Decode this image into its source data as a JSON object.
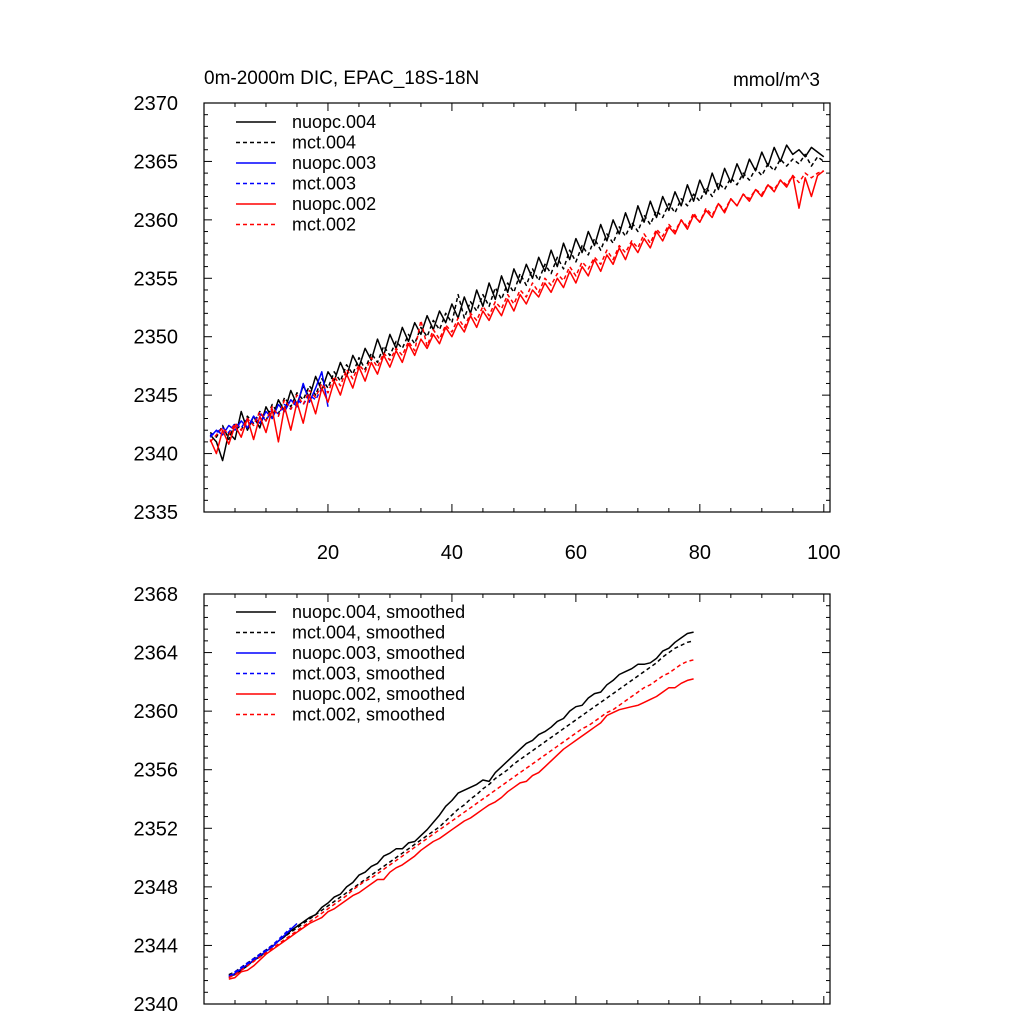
{
  "colors": {
    "black": "#000000",
    "blue": "#0000ff",
    "red": "#ff0000"
  },
  "chart_data": [
    {
      "type": "line",
      "title": "0m-2000m DIC, EPAC_18S-18N",
      "units": "mmol/m^3",
      "xlabel": "",
      "ylabel": "",
      "xlim": [
        0,
        101
      ],
      "ylim": [
        2335,
        2370
      ],
      "xticks": [
        20,
        40,
        60,
        80,
        100
      ],
      "xtick_labels": [
        "20",
        "40",
        "60",
        "80",
        "100"
      ],
      "yticks": [
        2335,
        2340,
        2345,
        2350,
        2355,
        2360,
        2365,
        2370
      ],
      "ytick_labels": [
        "2335",
        "2340",
        "2345",
        "2350",
        "2355",
        "2360",
        "2365",
        "2370"
      ],
      "legend_position": "top-left",
      "series": [
        {
          "name": "nuopc.004",
          "color": "black",
          "dash": false,
          "start": 1,
          "values": [
            2341.6,
            2341.0,
            2339.4,
            2341.8,
            2341.2,
            2343.6,
            2342.0,
            2343.2,
            2342.2,
            2344.0,
            2343.0,
            2344.6,
            2343.6,
            2345.4,
            2344.2,
            2345.8,
            2344.8,
            2346.6,
            2345.4,
            2347.0,
            2346.2,
            2347.8,
            2346.6,
            2348.4,
            2347.4,
            2349.0,
            2348.0,
            2349.8,
            2348.4,
            2350.2,
            2349.0,
            2350.8,
            2349.6,
            2351.2,
            2350.2,
            2351.8,
            2350.6,
            2352.2,
            2351.2,
            2352.8,
            2351.6,
            2353.4,
            2352.0,
            2354.0,
            2352.6,
            2354.6,
            2353.2,
            2355.2,
            2353.8,
            2355.8,
            2354.6,
            2356.2,
            2355.0,
            2356.8,
            2355.6,
            2357.4,
            2356.0,
            2358.0,
            2356.6,
            2358.4,
            2357.2,
            2359.0,
            2357.8,
            2359.6,
            2358.2,
            2360.0,
            2358.8,
            2360.6,
            2359.2,
            2361.2,
            2359.8,
            2361.6,
            2360.2,
            2362.0,
            2360.8,
            2362.4,
            2361.2,
            2363.0,
            2361.6,
            2363.4,
            2362.2,
            2364.0,
            2362.6,
            2364.4,
            2363.2,
            2364.8,
            2363.6,
            2365.2,
            2364.2,
            2365.8,
            2364.6,
            2366.2,
            2365.0,
            2366.4,
            2365.6,
            2366.0,
            2365.4,
            2366.2,
            2365.8,
            2365.4
          ]
        },
        {
          "name": "mct.004",
          "color": "black",
          "dash": true,
          "start": 1,
          "values": [
            2341.8,
            2341.4,
            2342.4,
            2341.2,
            2342.6,
            2342.0,
            2343.2,
            2342.6,
            2343.6,
            2342.8,
            2344.2,
            2343.4,
            2344.8,
            2344.0,
            2345.2,
            2344.6,
            2345.8,
            2345.0,
            2346.4,
            2345.6,
            2347.0,
            2346.2,
            2347.6,
            2346.8,
            2348.2,
            2347.2,
            2348.6,
            2347.8,
            2349.2,
            2348.4,
            2349.6,
            2349.0,
            2350.2,
            2349.4,
            2350.8,
            2350.0,
            2351.4,
            2350.6,
            2352.0,
            2351.2,
            2353.6,
            2351.6,
            2353.0,
            2352.2,
            2353.6,
            2352.6,
            2354.2,
            2353.2,
            2354.6,
            2353.8,
            2355.4,
            2354.4,
            2355.8,
            2354.8,
            2356.2,
            2355.4,
            2356.8,
            2355.8,
            2357.4,
            2356.4,
            2357.8,
            2357.0,
            2358.4,
            2357.4,
            2358.8,
            2358.0,
            2359.4,
            2358.6,
            2359.8,
            2359.0,
            2360.4,
            2359.6,
            2360.8,
            2360.2,
            2361.4,
            2360.6,
            2361.8,
            2361.2,
            2362.2,
            2361.6,
            2362.8,
            2362.0,
            2363.2,
            2362.6,
            2363.6,
            2363.0,
            2364.0,
            2363.4,
            2364.4,
            2363.8,
            2364.8,
            2364.2,
            2365.2,
            2364.6,
            2365.2,
            2364.8,
            2365.6,
            2364.6,
            2365.4,
            2365.0
          ]
        },
        {
          "name": "nuopc.003",
          "color": "blue",
          "dash": false,
          "start": 1,
          "values": [
            2341.4,
            2342.0,
            2341.6,
            2342.4,
            2342.0,
            2342.8,
            2342.2,
            2343.2,
            2342.6,
            2343.6,
            2343.0,
            2344.2,
            2343.6,
            2344.6,
            2344.0,
            2346.0,
            2344.4,
            2345.6,
            2347.0,
            2344.0
          ]
        },
        {
          "name": "mct.003",
          "color": "blue",
          "dash": true,
          "start": 1,
          "values": [
            2341.6,
            2341.8,
            2342.2,
            2341.8,
            2342.6,
            2342.2,
            2343.0,
            2342.6,
            2343.4,
            2342.8,
            2343.8,
            2343.4,
            2344.2,
            2343.8,
            2344.6,
            2344.2,
            2345.0,
            2344.6,
            2345.6
          ]
        },
        {
          "name": "nuopc.002",
          "color": "red",
          "dash": false,
          "start": 1,
          "values": [
            2341.2,
            2340.0,
            2342.0,
            2340.8,
            2342.4,
            2341.4,
            2343.0,
            2341.2,
            2343.2,
            2341.8,
            2343.8,
            2341.0,
            2344.0,
            2342.0,
            2344.4,
            2342.6,
            2345.0,
            2343.4,
            2345.6,
            2344.4,
            2346.2,
            2345.0,
            2346.8,
            2345.6,
            2347.4,
            2346.2,
            2347.8,
            2346.8,
            2348.4,
            2347.4,
            2348.8,
            2347.8,
            2349.4,
            2348.4,
            2349.8,
            2349.0,
            2350.2,
            2349.4,
            2350.8,
            2350.0,
            2351.2,
            2350.4,
            2351.8,
            2350.8,
            2352.2,
            2351.4,
            2352.6,
            2351.8,
            2353.2,
            2352.2,
            2353.6,
            2352.8,
            2354.0,
            2353.4,
            2354.6,
            2353.8,
            2355.0,
            2354.2,
            2355.6,
            2354.6,
            2356.0,
            2355.2,
            2356.6,
            2355.6,
            2357.0,
            2356.2,
            2357.6,
            2356.6,
            2358.0,
            2357.2,
            2358.4,
            2357.6,
            2359.0,
            2358.2,
            2359.4,
            2358.8,
            2360.0,
            2359.2,
            2360.4,
            2359.8,
            2360.8,
            2360.2,
            2361.4,
            2360.6,
            2361.8,
            2361.2,
            2362.2,
            2361.6,
            2362.6,
            2362.0,
            2363.0,
            2362.4,
            2363.4,
            2362.8,
            2363.8,
            2361.0,
            2363.6,
            2362.0,
            2363.8,
            2364.2
          ]
        },
        {
          "name": "mct.002",
          "color": "red",
          "dash": true,
          "start": 1,
          "values": [
            2341.0,
            2341.6,
            2342.2,
            2341.6,
            2342.6,
            2342.0,
            2343.0,
            2342.4,
            2343.6,
            2342.8,
            2344.0,
            2343.2,
            2344.6,
            2343.8,
            2345.0,
            2344.2,
            2345.4,
            2344.8,
            2346.0,
            2345.2,
            2346.6,
            2345.8,
            2347.2,
            2346.4,
            2347.6,
            2347.0,
            2348.2,
            2347.4,
            2348.6,
            2348.0,
            2349.0,
            2348.4,
            2349.6,
            2348.8,
            2351.4,
            2349.2,
            2350.6,
            2349.8,
            2351.0,
            2350.4,
            2351.6,
            2350.8,
            2352.0,
            2351.4,
            2352.6,
            2351.8,
            2353.0,
            2352.4,
            2353.6,
            2352.8,
            2354.0,
            2353.4,
            2354.6,
            2353.8,
            2355.0,
            2354.4,
            2355.4,
            2354.8,
            2356.0,
            2355.2,
            2356.4,
            2355.8,
            2356.8,
            2356.2,
            2357.4,
            2356.6,
            2357.8,
            2357.2,
            2358.2,
            2357.6,
            2358.8,
            2358.0,
            2359.2,
            2358.6,
            2359.6,
            2359.0,
            2360.0,
            2359.4,
            2360.6,
            2359.8,
            2361.0,
            2360.4,
            2361.4,
            2360.8,
            2361.8,
            2361.2,
            2362.2,
            2361.8,
            2362.6,
            2362.2,
            2363.0,
            2362.6,
            2363.4,
            2363.0,
            2363.8,
            2363.2,
            2364.0,
            2363.6,
            2364.0,
            2364.2
          ]
        }
      ]
    },
    {
      "type": "line",
      "title": "",
      "xlabel": "",
      "ylabel": "",
      "xlim": [
        0,
        101
      ],
      "ylim": [
        2340,
        2368
      ],
      "xticks": [
        20,
        40,
        60,
        80,
        100
      ],
      "yticks": [
        2340,
        2344,
        2348,
        2352,
        2356,
        2360,
        2364,
        2368
      ],
      "ytick_labels": [
        "2340",
        "2344",
        "2348",
        "2352",
        "2356",
        "2360",
        "2364",
        "2368"
      ],
      "legend_position": "top-left",
      "series": [
        {
          "name": "nuopc.004, smoothed",
          "color": "black",
          "dash": false,
          "start": 4,
          "values": [
            2341.9,
            2342.0,
            2342.3,
            2342.6,
            2343.0,
            2343.2,
            2343.6,
            2343.9,
            2344.3,
            2344.6,
            2345.0,
            2345.3,
            2345.6,
            2345.9,
            2346.1,
            2346.6,
            2346.9,
            2347.3,
            2347.5,
            2348.0,
            2348.3,
            2348.8,
            2349.0,
            2349.4,
            2349.6,
            2350.1,
            2350.3,
            2350.6,
            2350.6,
            2351.0,
            2351.1,
            2351.5,
            2351.9,
            2352.4,
            2352.9,
            2353.5,
            2353.9,
            2354.4,
            2354.6,
            2354.8,
            2355.0,
            2355.3,
            2355.2,
            2355.8,
            2356.2,
            2356.6,
            2357.0,
            2357.4,
            2357.8,
            2358.0,
            2358.4,
            2358.6,
            2358.9,
            2359.3,
            2359.5,
            2360.0,
            2360.3,
            2360.4,
            2360.9,
            2361.2,
            2361.3,
            2361.8,
            2362.1,
            2362.5,
            2362.7,
            2362.9,
            2363.2,
            2363.2,
            2363.3,
            2363.6,
            2364.1,
            2364.3,
            2364.7,
            2365.0,
            2365.3,
            2365.4
          ]
        },
        {
          "name": "mct.004, smoothed",
          "color": "black",
          "dash": true,
          "start": 4,
          "values": [
            2342.0,
            2342.2,
            2342.5,
            2342.8,
            2343.1,
            2343.4,
            2343.7,
            2344.0,
            2344.3,
            2344.6,
            2344.9,
            2345.2,
            2345.5,
            2345.8,
            2346.1,
            2346.4,
            2346.7,
            2347.0,
            2347.3,
            2347.6,
            2347.9,
            2348.2,
            2348.5,
            2348.8,
            2349.1,
            2349.4,
            2349.7,
            2350.0,
            2350.3,
            2350.6,
            2350.9,
            2351.2,
            2351.5,
            2351.8,
            2352.1,
            2352.5,
            2352.9,
            2353.3,
            2353.6,
            2354.0,
            2354.3,
            2354.7,
            2355.0,
            2355.4,
            2355.7,
            2356.0,
            2356.4,
            2356.7,
            2357.0,
            2357.3,
            2357.6,
            2357.9,
            2358.2,
            2358.5,
            2358.8,
            2359.1,
            2359.4,
            2359.7,
            2360.0,
            2360.3,
            2360.6,
            2360.9,
            2361.2,
            2361.5,
            2361.8,
            2362.1,
            2362.4,
            2362.7,
            2363.0,
            2363.3,
            2363.7,
            2364.0,
            2364.3,
            2364.5,
            2364.7,
            2364.8
          ]
        },
        {
          "name": "nuopc.003, smoothed",
          "color": "blue",
          "dash": false,
          "start": 4,
          "values": [
            2341.8,
            2342.1,
            2342.4,
            2342.7,
            2343.0,
            2343.3,
            2343.6,
            2343.9,
            2344.3,
            2344.7,
            2345.1,
            2345.5
          ]
        },
        {
          "name": "mct.003, smoothed",
          "color": "blue",
          "dash": true,
          "start": 4,
          "values": [
            2341.9,
            2342.2,
            2342.5,
            2342.8,
            2343.1,
            2343.4,
            2343.7,
            2344.0,
            2344.4,
            2344.8,
            2345.2
          ]
        },
        {
          "name": "nuopc.002, smoothed",
          "color": "red",
          "dash": false,
          "start": 4,
          "values": [
            2341.7,
            2341.8,
            2342.2,
            2342.3,
            2342.6,
            2343.0,
            2343.4,
            2343.7,
            2344.0,
            2344.3,
            2344.6,
            2344.9,
            2345.2,
            2345.5,
            2345.7,
            2345.9,
            2346.3,
            2346.5,
            2346.8,
            2347.1,
            2347.4,
            2347.6,
            2347.9,
            2348.2,
            2348.5,
            2348.5,
            2349.0,
            2349.3,
            2349.5,
            2349.8,
            2350.1,
            2350.5,
            2350.8,
            2351.1,
            2351.3,
            2351.6,
            2351.9,
            2352.2,
            2352.5,
            2352.7,
            2353.0,
            2353.3,
            2353.6,
            2353.8,
            2354.1,
            2354.5,
            2354.8,
            2355.1,
            2355.2,
            2355.6,
            2355.8,
            2356.2,
            2356.6,
            2357.0,
            2357.4,
            2357.7,
            2358.0,
            2358.3,
            2358.6,
            2358.9,
            2359.2,
            2359.7,
            2359.9,
            2360.1,
            2360.2,
            2360.3,
            2360.4,
            2360.6,
            2360.8,
            2361.0,
            2361.3,
            2361.6,
            2361.6,
            2361.9,
            2362.1,
            2362.2
          ]
        },
        {
          "name": "mct.002, smoothed",
          "color": "red",
          "dash": true,
          "start": 4,
          "values": [
            2341.8,
            2342.0,
            2342.3,
            2342.6,
            2342.9,
            2343.2,
            2343.5,
            2343.8,
            2344.1,
            2344.4,
            2344.7,
            2345.0,
            2345.3,
            2345.6,
            2345.9,
            2346.2,
            2346.5,
            2346.8,
            2347.1,
            2347.4,
            2347.8,
            2348.1,
            2348.4,
            2348.6,
            2348.9,
            2349.2,
            2349.5,
            2349.8,
            2350.1,
            2350.4,
            2350.7,
            2351.0,
            2351.3,
            2351.6,
            2351.9,
            2352.2,
            2352.5,
            2352.8,
            2353.1,
            2353.4,
            2353.7,
            2354.0,
            2354.3,
            2354.6,
            2354.9,
            2355.2,
            2355.5,
            2355.8,
            2356.1,
            2356.4,
            2356.7,
            2357.0,
            2357.3,
            2357.6,
            2357.9,
            2358.2,
            2358.5,
            2358.8,
            2359.0,
            2359.3,
            2359.6,
            2359.9,
            2360.1,
            2360.4,
            2360.7,
            2361.0,
            2361.3,
            2361.6,
            2361.8,
            2362.1,
            2362.4,
            2362.6,
            2362.9,
            2363.2,
            2363.4,
            2363.5
          ]
        }
      ]
    }
  ]
}
